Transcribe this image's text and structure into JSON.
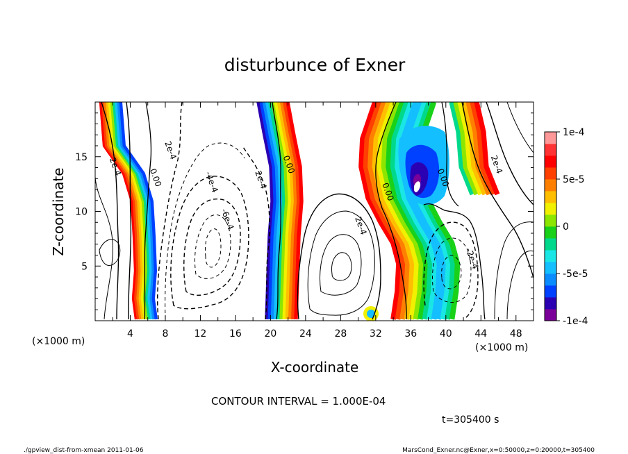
{
  "chart_data": {
    "type": "contour",
    "title": "disturbunce of Exner",
    "xlabel": "X-coordinate",
    "ylabel": "Z-coordinate",
    "x_unit": "(×1000 m)",
    "y_unit": "(×1000 m)",
    "xlim": [
      0,
      50
    ],
    "ylim": [
      0,
      20
    ],
    "x_ticks": [
      "4",
      "8",
      "12",
      "16",
      "20",
      "24",
      "28",
      "32",
      "36",
      "40",
      "44",
      "48"
    ],
    "y_ticks": [
      "5",
      "10",
      "15"
    ],
    "contour_interval_text": "CONTOUR INTERVAL = 1.000E-04",
    "time_label": "t=305400 s",
    "colorbar": {
      "range": [
        -0.0001,
        0.0001
      ],
      "tick_labels": [
        "1e-4",
        "5e-5",
        "0",
        "-5e-5",
        "-1e-4"
      ],
      "colors": [
        "#7a0099",
        "#2b00b3",
        "#0040ff",
        "#0a8cff",
        "#14bfff",
        "#1ae6e6",
        "#00d98c",
        "#1ad11a",
        "#8ce600",
        "#f0f000",
        "#ffbf00",
        "#ff8000",
        "#ff4000",
        "#ff0000",
        "#ff3333",
        "#ff9999"
      ]
    },
    "contour_labels": [
      {
        "text": "2e-4",
        "x": 2.0,
        "z": 14.0
      },
      {
        "text": "0.00",
        "x": 6.6,
        "z": 13.0
      },
      {
        "text": "2e-4",
        "x": 8.3,
        "z": 15.5
      },
      {
        "text": "-4e-4",
        "x": 13.0,
        "z": 12.6
      },
      {
        "text": "-6e-4",
        "x": 14.8,
        "z": 9.2
      },
      {
        "text": "2e-4",
        "x": 18.6,
        "z": 12.8
      },
      {
        "text": "0.00",
        "x": 21.8,
        "z": 14.2
      },
      {
        "text": "2e-4",
        "x": 30.0,
        "z": 8.6
      },
      {
        "text": "0.00",
        "x": 33.1,
        "z": 11.7
      },
      {
        "text": "0.00",
        "x": 39.4,
        "z": 13.0
      },
      {
        "text": "2e-4",
        "x": 45.5,
        "z": 14.2
      },
      {
        "text": "-2e-4",
        "x": 42.7,
        "z": 5.6
      }
    ]
  },
  "footer": {
    "left": "./gpview_dist-from-xmean  2011-01-06",
    "right": "MarsCond_Exner.nc@Exner,x=0:50000,z=0:20000,t=305400"
  }
}
